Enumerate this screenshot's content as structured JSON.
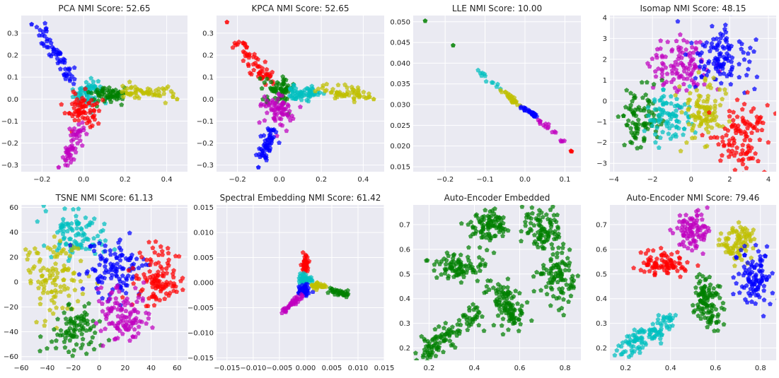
{
  "figure": {
    "background": "#ffffff",
    "axes_background": "#eaeaf2",
    "grid": true,
    "marker": "pentagon"
  },
  "colors": {
    "b": "#0000ff",
    "g": "#008000",
    "r": "#ff0000",
    "c": "#00bfbf",
    "m": "#bf00bf",
    "y": "#bfbf00"
  },
  "chart_data": [
    {
      "type": "scatter",
      "title": "PCA NMI Score: 52.65",
      "xlim": [
        -0.3,
        0.5
      ],
      "ylim": [
        -0.33,
        0.38
      ],
      "xticks": [
        -0.2,
        0.0,
        0.2,
        0.4
      ],
      "xtick_labels": [
        "−0.2",
        "0.0",
        "0.2",
        "0.4"
      ],
      "yticks": [
        -0.3,
        -0.2,
        -0.1,
        0.0,
        0.1,
        0.2,
        0.3
      ],
      "ytick_labels": [
        "−0.3",
        "−0.2",
        "−0.1",
        "0.0",
        "0.1",
        "0.2",
        "0.3"
      ],
      "clusters": [
        {
          "color": "b",
          "shape": "segment",
          "from": [
            -0.2,
            0.31
          ],
          "to": [
            -0.06,
            0.1
          ],
          "spread": 0.018,
          "n": 60
        },
        {
          "color": "c",
          "shape": "blob",
          "center": [
            0.02,
            0.03
          ],
          "spread": [
            0.035,
            0.03
          ],
          "n": 70
        },
        {
          "color": "g",
          "shape": "segment",
          "from": [
            0.06,
            0.03
          ],
          "to": [
            0.18,
            0.02
          ],
          "spread": 0.018,
          "n": 60
        },
        {
          "color": "y",
          "shape": "segment",
          "from": [
            0.2,
            0.04
          ],
          "to": [
            0.42,
            0.02
          ],
          "spread": 0.018,
          "n": 55
        },
        {
          "color": "r",
          "shape": "blob",
          "center": [
            0.0,
            -0.05
          ],
          "spread": [
            0.04,
            0.035
          ],
          "n": 70
        },
        {
          "color": "m",
          "shape": "segment",
          "from": [
            -0.01,
            -0.13
          ],
          "to": [
            -0.09,
            -0.29
          ],
          "spread": 0.016,
          "n": 55
        }
      ],
      "outliers": [
        {
          "color": "b",
          "x": -0.25,
          "y": 0.34
        },
        {
          "color": "y",
          "x": 0.45,
          "y": 0.0
        },
        {
          "color": "y",
          "x": 0.43,
          "y": 0.01
        },
        {
          "color": "m",
          "x": -0.12,
          "y": -0.31
        }
      ]
    },
    {
      "type": "scatter",
      "title": "KPCA NMI Score: 52.65",
      "xlim": [
        -0.3,
        0.5
      ],
      "ylim": [
        -0.33,
        0.38
      ],
      "xticks": [
        -0.2,
        0.0,
        0.2,
        0.4
      ],
      "xtick_labels": [
        "−0.2",
        "0.0",
        "0.2",
        "0.4"
      ],
      "yticks": [
        -0.3,
        -0.2,
        -0.1,
        0.0,
        0.1,
        0.2,
        0.3
      ],
      "ytick_labels": [
        "−0.3",
        "−0.2",
        "−0.1",
        "0.0",
        "0.1",
        "0.2",
        "0.3"
      ],
      "clusters": [
        {
          "color": "r",
          "shape": "segment",
          "from": [
            -0.2,
            0.27
          ],
          "to": [
            -0.05,
            0.07
          ],
          "spread": 0.018,
          "n": 60
        },
        {
          "color": "g",
          "shape": "blob",
          "center": [
            0.0,
            0.04
          ],
          "spread": [
            0.035,
            0.03
          ],
          "n": 70
        },
        {
          "color": "c",
          "shape": "segment",
          "from": [
            0.05,
            0.03
          ],
          "to": [
            0.18,
            0.03
          ],
          "spread": 0.018,
          "n": 60
        },
        {
          "color": "y",
          "shape": "segment",
          "from": [
            0.2,
            0.04
          ],
          "to": [
            0.42,
            0.02
          ],
          "spread": 0.018,
          "n": 55
        },
        {
          "color": "m",
          "shape": "blob",
          "center": [
            0.0,
            -0.05
          ],
          "spread": [
            0.04,
            0.035
          ],
          "n": 70
        },
        {
          "color": "b",
          "shape": "segment",
          "from": [
            -0.02,
            -0.12
          ],
          "to": [
            -0.09,
            -0.28
          ],
          "spread": 0.016,
          "n": 55
        }
      ],
      "outliers": [
        {
          "color": "r",
          "x": -0.25,
          "y": 0.35
        },
        {
          "color": "y",
          "x": 0.45,
          "y": 0.0
        },
        {
          "color": "y",
          "x": 0.43,
          "y": 0.01
        },
        {
          "color": "b",
          "x": -0.1,
          "y": -0.31
        }
      ]
    },
    {
      "type": "scatter",
      "title": "LLE NMI Score: 10.00",
      "xlim": [
        -0.28,
        0.14
      ],
      "ylim": [
        0.0138,
        0.0515
      ],
      "xticks": [
        -0.2,
        -0.1,
        0.0,
        0.1
      ],
      "xtick_labels": [
        "−0.2",
        "−0.1",
        "0.0",
        "0.1"
      ],
      "yticks": [
        0.015,
        0.02,
        0.025,
        0.03,
        0.035,
        0.04,
        0.045,
        0.05
      ],
      "ytick_labels": [
        "0.015",
        "0.020",
        "0.025",
        "0.030",
        "0.035",
        "0.040",
        "0.045",
        "0.050"
      ],
      "clusters": [
        {
          "color": "c",
          "shape": "segment",
          "from": [
            -0.12,
            0.0385
          ],
          "to": [
            -0.06,
            0.0335
          ],
          "spread": 0.0004,
          "n": 12
        },
        {
          "color": "y",
          "shape": "segment",
          "from": [
            -0.06,
            0.0335
          ],
          "to": [
            -0.01,
            0.0295
          ],
          "spread": 0.0003,
          "n": 25
        },
        {
          "color": "b",
          "shape": "segment",
          "from": [
            -0.01,
            0.0295
          ],
          "to": [
            0.03,
            0.027
          ],
          "spread": 0.0002,
          "n": 35
        },
        {
          "color": "m",
          "shape": "segment",
          "from": [
            0.03,
            0.0268
          ],
          "to": [
            0.1,
            0.021
          ],
          "spread": 0.0003,
          "n": 18
        }
      ],
      "outliers": [
        {
          "color": "g",
          "x": -0.25,
          "y": 0.0502
        },
        {
          "color": "g",
          "x": -0.18,
          "y": 0.0443
        },
        {
          "color": "r",
          "x": 0.115,
          "y": 0.0188
        },
        {
          "color": "r",
          "x": 0.117,
          "y": 0.0187
        }
      ]
    },
    {
      "type": "scatter",
      "title": "Isomap NMI Score: 48.15",
      "xlim": [
        -4.2,
        4.4
      ],
      "ylim": [
        -3.4,
        4.1
      ],
      "xticks": [
        -4,
        -2,
        0,
        2,
        4
      ],
      "xtick_labels": [
        "−4",
        "−2",
        "0",
        "2",
        "4"
      ],
      "yticks": [
        -3,
        -2,
        -1,
        0,
        1,
        2,
        3,
        4
      ],
      "ytick_labels": [
        "−3",
        "−2",
        "−1",
        "0",
        "1",
        "2",
        "3",
        "4"
      ],
      "clusters": [
        {
          "color": "m",
          "shape": "blob",
          "center": [
            -0.5,
            1.6
          ],
          "spread": [
            0.8,
            0.75
          ],
          "n": 110
        },
        {
          "color": "b",
          "shape": "blob",
          "center": [
            1.6,
            2.2
          ],
          "spread": [
            0.8,
            0.75
          ],
          "n": 110
        },
        {
          "color": "g",
          "shape": "blob",
          "center": [
            -2.6,
            -0.7
          ],
          "spread": [
            0.6,
            0.8
          ],
          "n": 90
        },
        {
          "color": "c",
          "shape": "blob",
          "center": [
            -1.2,
            -0.8
          ],
          "spread": [
            0.55,
            0.65
          ],
          "n": 90
        },
        {
          "color": "y",
          "shape": "blob",
          "center": [
            0.6,
            -0.5
          ],
          "spread": [
            0.6,
            0.8
          ],
          "n": 100
        },
        {
          "color": "r",
          "shape": "blob",
          "center": [
            2.6,
            -1.7
          ],
          "spread": [
            0.7,
            0.8
          ],
          "n": 110
        }
      ],
      "outliers": []
    },
    {
      "type": "scatter",
      "title": "TSNE NMI Score: 61.13",
      "xlim": [
        -60,
        68
      ],
      "ylim": [
        -63,
        62
      ],
      "xticks": [
        -60,
        -40,
        -20,
        0,
        20,
        40,
        60
      ],
      "xtick_labels": [
        "−60",
        "−40",
        "−20",
        "0",
        "20",
        "40",
        "60"
      ],
      "yticks": [
        -60,
        -40,
        -20,
        0,
        20,
        40,
        60
      ],
      "ytick_labels": [
        "−60",
        "−40",
        "−20",
        "0",
        "20",
        "40",
        "60"
      ],
      "clusters": [
        {
          "color": "c",
          "shape": "blob",
          "center": [
            -18,
            38
          ],
          "spread": [
            11,
            10
          ],
          "n": 100
        },
        {
          "color": "y",
          "shape": "blob",
          "center": [
            -35,
            5
          ],
          "spread": [
            10,
            15
          ],
          "n": 110
        },
        {
          "color": "b",
          "shape": "blob",
          "center": [
            12,
            12
          ],
          "spread": [
            11,
            12
          ],
          "n": 110
        },
        {
          "color": "r",
          "shape": "blob",
          "center": [
            45,
            3
          ],
          "spread": [
            10,
            12
          ],
          "n": 110
        },
        {
          "color": "g",
          "shape": "blob",
          "center": [
            -20,
            -38
          ],
          "spread": [
            9,
            10
          ],
          "n": 90
        },
        {
          "color": "m",
          "shape": "blob",
          "center": [
            18,
            -25
          ],
          "spread": [
            11,
            11
          ],
          "n": 110
        }
      ],
      "outliers": []
    },
    {
      "type": "scatter",
      "title": "Spectral Embedding NMI Score: 61.42",
      "xlim": [
        -0.017,
        0.015
      ],
      "ylim": [
        -0.0155,
        0.0155
      ],
      "xticks": [
        -0.015,
        -0.01,
        -0.005,
        0.0,
        0.005,
        0.01,
        0.015
      ],
      "xtick_labels": [
        "−0.015",
        "−0.010",
        "−0.005",
        "0.000",
        "0.005",
        "0.010",
        "0.015"
      ],
      "yticks": [
        -0.015,
        -0.01,
        -0.005,
        0.0,
        0.005,
        0.01,
        0.015
      ],
      "ytick_labels": [
        "−0.015",
        "−0.010",
        "−0.005",
        "0.000",
        "0.005",
        "0.010",
        "0.015"
      ],
      "clusters": [
        {
          "color": "r",
          "shape": "segment",
          "from": [
            0.0,
            0.0055
          ],
          "to": [
            0.0,
            0.002
          ],
          "spread": 0.0003,
          "n": 40
        },
        {
          "color": "c",
          "shape": "blob",
          "center": [
            0.0,
            0.0008
          ],
          "spread": [
            0.0006,
            0.0006
          ],
          "n": 40
        },
        {
          "color": "b",
          "shape": "blob",
          "center": [
            -0.0005,
            -0.0015
          ],
          "spread": [
            0.0006,
            0.0006
          ],
          "n": 40
        },
        {
          "color": "y",
          "shape": "segment",
          "from": [
            0.0015,
            -0.0005
          ],
          "to": [
            0.004,
            -0.0008
          ],
          "spread": 0.0003,
          "n": 35
        },
        {
          "color": "g",
          "shape": "segment",
          "from": [
            0.0045,
            -0.0012
          ],
          "to": [
            0.008,
            -0.0025
          ],
          "spread": 0.0003,
          "n": 35
        },
        {
          "color": "m",
          "shape": "segment",
          "from": [
            -0.001,
            -0.0025
          ],
          "to": [
            -0.004,
            -0.0055
          ],
          "spread": 0.0003,
          "n": 35
        }
      ],
      "outliers": []
    },
    {
      "type": "scatter",
      "title": "Auto-Encoder Embedded",
      "xlim": [
        0.13,
        0.87
      ],
      "ylim": [
        0.15,
        0.78
      ],
      "xticks": [
        0.2,
        0.4,
        0.6,
        0.8
      ],
      "xtick_labels": [
        "0.2",
        "0.4",
        "0.6",
        "0.8"
      ],
      "yticks": [
        0.2,
        0.3,
        0.4,
        0.5,
        0.6,
        0.7
      ],
      "ytick_labels": [
        "0.2",
        "0.3",
        "0.4",
        "0.5",
        "0.6",
        "0.7"
      ],
      "clusters": [
        {
          "color": "g",
          "shape": "blob",
          "center": [
            0.47,
            0.7
          ],
          "spread": [
            0.045,
            0.035
          ],
          "n": 90
        },
        {
          "color": "g",
          "shape": "blob",
          "center": [
            0.7,
            0.68
          ],
          "spread": [
            0.045,
            0.04
          ],
          "n": 90
        },
        {
          "color": "g",
          "shape": "blob",
          "center": [
            0.33,
            0.53
          ],
          "spread": [
            0.06,
            0.03
          ],
          "n": 90
        },
        {
          "color": "g",
          "shape": "blob",
          "center": [
            0.77,
            0.5
          ],
          "spread": [
            0.04,
            0.055
          ],
          "n": 100
        },
        {
          "color": "g",
          "shape": "segment",
          "from": [
            0.5,
            0.45
          ],
          "to": [
            0.58,
            0.3
          ],
          "spread": 0.03,
          "n": 110
        },
        {
          "color": "g",
          "shape": "segment",
          "from": [
            0.18,
            0.18
          ],
          "to": [
            0.42,
            0.33
          ],
          "spread": 0.025,
          "n": 110
        }
      ],
      "outliers": []
    },
    {
      "type": "scatter",
      "title": "Auto-Encoder NMI Score: 79.46",
      "xlim": [
        0.13,
        0.87
      ],
      "ylim": [
        0.15,
        0.78
      ],
      "xticks": [
        0.2,
        0.4,
        0.6,
        0.8
      ],
      "xtick_labels": [
        "0.2",
        "0.4",
        "0.6",
        "0.8"
      ],
      "yticks": [
        0.2,
        0.3,
        0.4,
        0.5,
        0.6,
        0.7
      ],
      "ytick_labels": [
        "0.2",
        "0.3",
        "0.4",
        "0.5",
        "0.6",
        "0.7"
      ],
      "clusters": [
        {
          "color": "m",
          "shape": "blob",
          "center": [
            0.5,
            0.67
          ],
          "spread": [
            0.04,
            0.04
          ],
          "n": 90
        },
        {
          "color": "y",
          "shape": "blob",
          "center": [
            0.7,
            0.63
          ],
          "spread": [
            0.04,
            0.04
          ],
          "n": 90
        },
        {
          "color": "r",
          "shape": "blob",
          "center": [
            0.37,
            0.54
          ],
          "spread": [
            0.05,
            0.025
          ],
          "n": 90
        },
        {
          "color": "b",
          "shape": "blob",
          "center": [
            0.77,
            0.49
          ],
          "spread": [
            0.04,
            0.055
          ],
          "n": 100
        },
        {
          "color": "g",
          "shape": "segment",
          "from": [
            0.54,
            0.46
          ],
          "to": [
            0.58,
            0.3
          ],
          "spread": 0.028,
          "n": 110
        },
        {
          "color": "c",
          "shape": "segment",
          "from": [
            0.18,
            0.18
          ],
          "to": [
            0.41,
            0.32
          ],
          "spread": 0.022,
          "n": 110
        }
      ],
      "outliers": []
    }
  ]
}
